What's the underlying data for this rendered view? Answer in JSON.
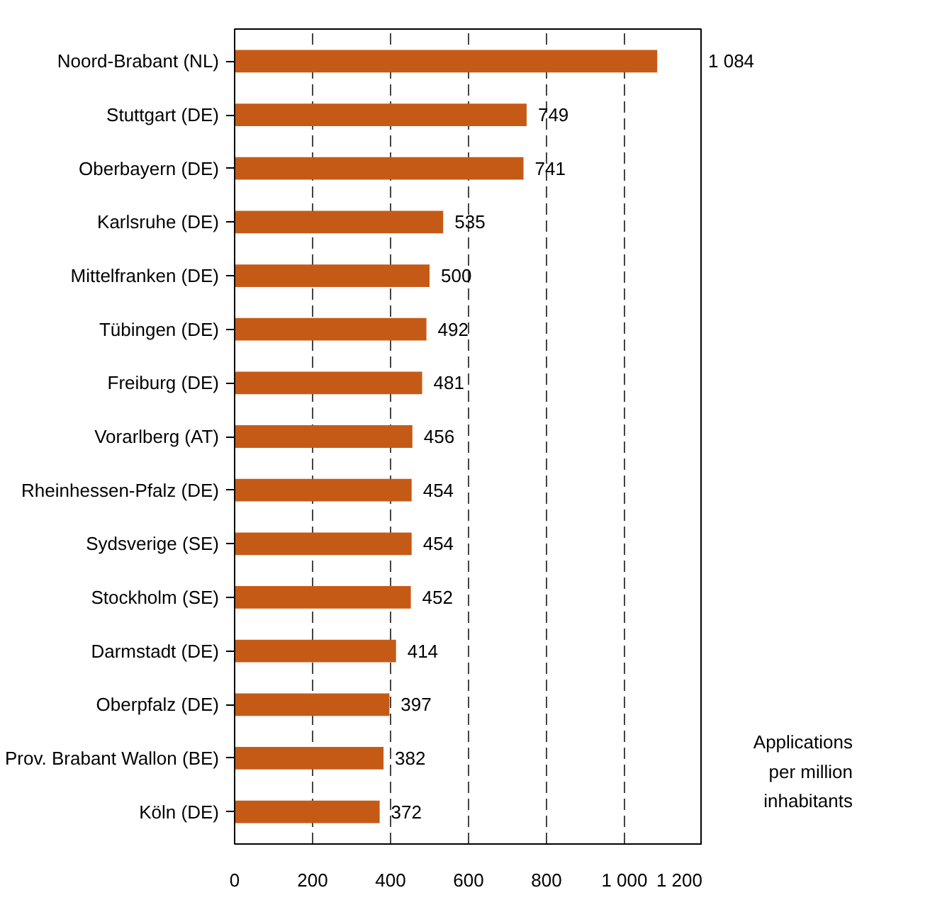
{
  "chart_data": {
    "type": "bar",
    "orientation": "horizontal",
    "categories": [
      "Noord-Brabant (NL)",
      "Stuttgart (DE)",
      "Oberbayern (DE)",
      "Karlsruhe (DE)",
      "Mittelfranken (DE)",
      "Tübingen (DE)",
      "Freiburg (DE)",
      "Vorarlberg (AT)",
      "Rheinhessen-Pfalz (DE)",
      "Sydsverige (SE)",
      "Stockholm (SE)",
      "Darmstadt (DE)",
      "Oberpfalz (DE)",
      "Prov. Brabant Wallon (BE)",
      "Köln (DE)"
    ],
    "values": [
      1084,
      749,
      741,
      535,
      500,
      492,
      481,
      456,
      454,
      454,
      452,
      414,
      397,
      382,
      372
    ],
    "value_labels": [
      "1 084",
      "749",
      "741",
      "535",
      "500",
      "492",
      "481",
      "456",
      "454",
      "454",
      "452",
      "414",
      "397",
      "382",
      "372"
    ],
    "color": "#c55a17",
    "xlim": [
      0,
      1200
    ],
    "xticks": [
      0,
      200,
      400,
      600,
      800,
      {
        "value": 1000,
        "label": "1 000"
      },
      {
        "value": 1200,
        "label": "1 200"
      }
    ],
    "grid": "x",
    "annotations": [
      "Applications per million inhabitants"
    ]
  }
}
